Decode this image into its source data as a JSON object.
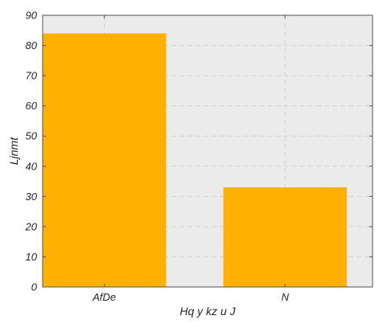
{
  "chart_data": {
    "type": "bar",
    "title": "",
    "xlabel": "Hq y kz  u J",
    "ylabel": "Ljnmt",
    "categories": [
      "AfDe",
      "N"
    ],
    "series": [
      {
        "values": [
          84,
          33
        ]
      }
    ],
    "ylim": [
      0,
      90
    ],
    "yticks": [
      0,
      10,
      20,
      30,
      40,
      50,
      60,
      70,
      80,
      90
    ],
    "grid": true,
    "legend": "none",
    "colors": {
      "bar": "#ffb000",
      "plot_background": "#ebebeb",
      "grid": "#d2d2d2",
      "frame": "#555555"
    }
  }
}
